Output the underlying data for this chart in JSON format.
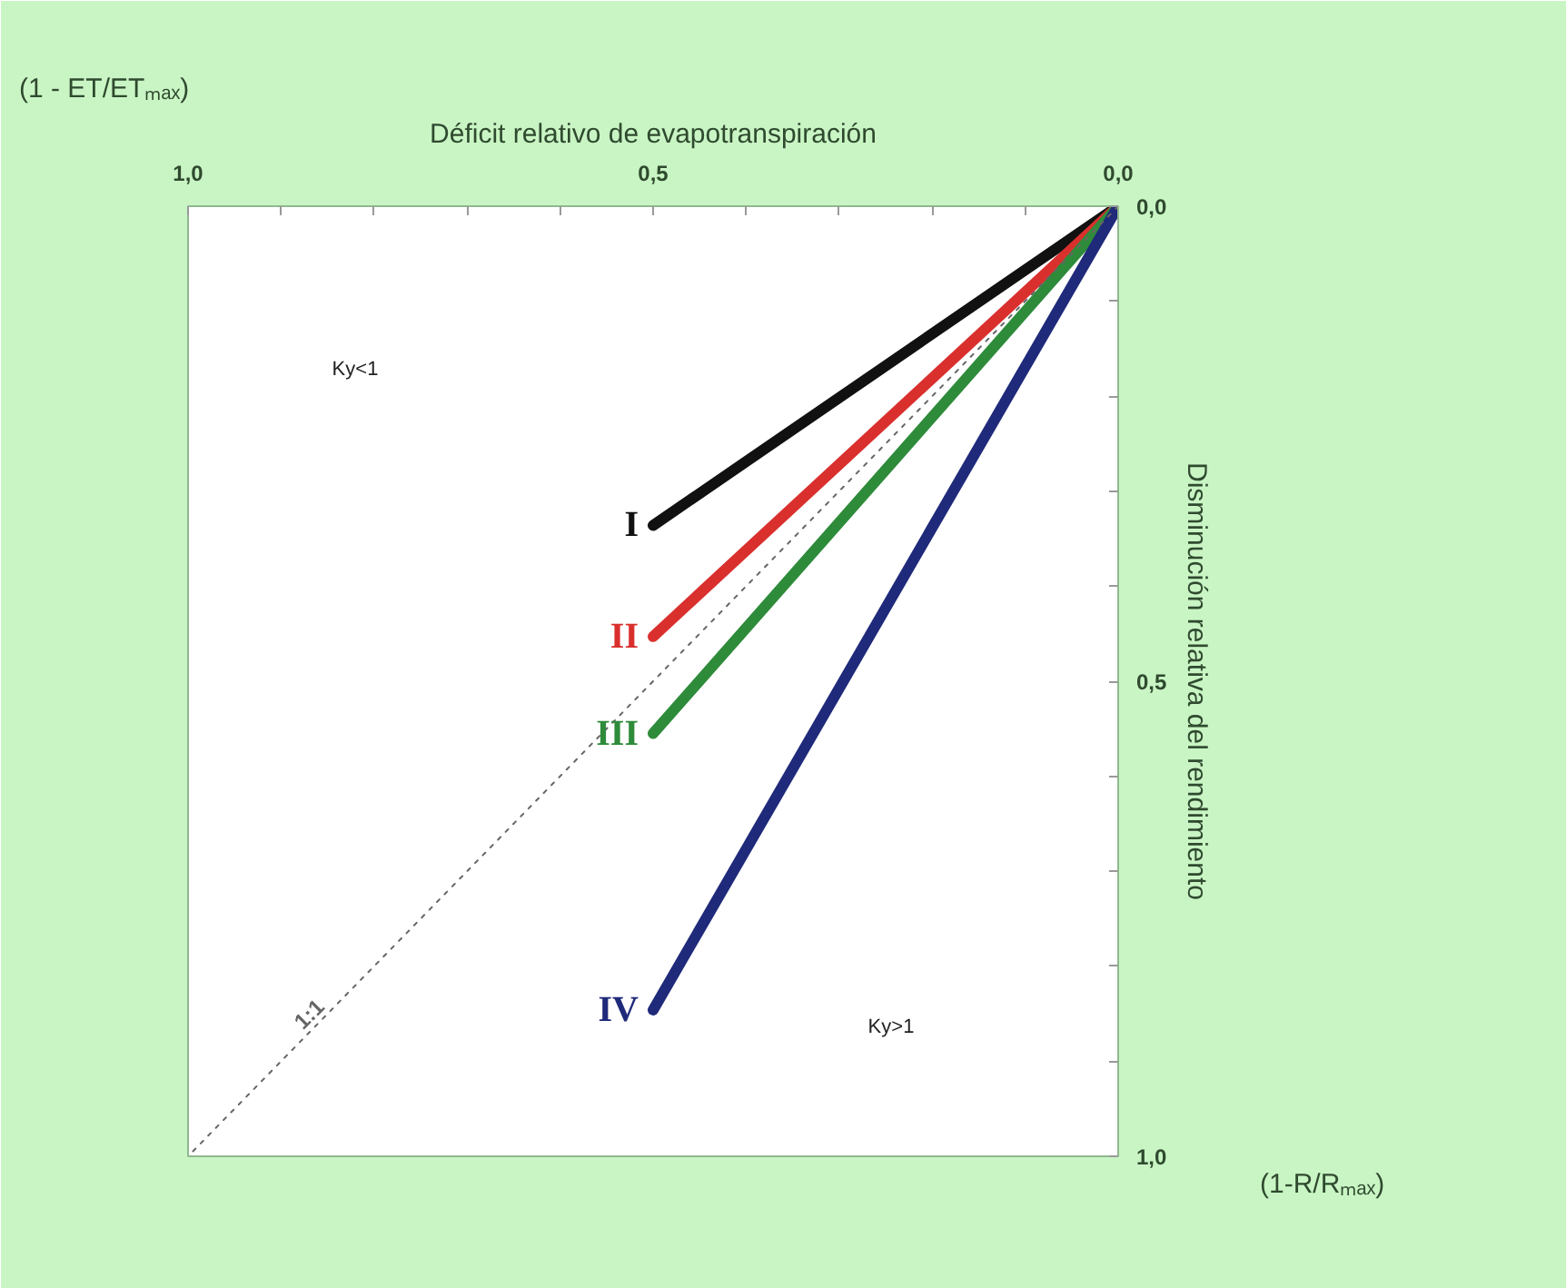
{
  "chart_data": {
    "type": "line",
    "xlabel": "Déficit relativo de evapotranspiración",
    "ylabel": "Disminución relativa del rendimiento",
    "annotations": [
      "(1 - ET/ETₘₐₓ)",
      "(1-R/Rₘₐₓ)",
      "Ky<1",
      "Ky>1"
    ],
    "xlim": [
      1,
      0
    ],
    "ylim": [
      1,
      0
    ],
    "xticks": [
      {
        "value": 1,
        "label": "1,0"
      },
      {
        "value": 0.9,
        "label": null
      },
      {
        "value": 0.8,
        "label": null
      },
      {
        "value": 0.7,
        "label": null
      },
      {
        "value": 0.6,
        "label": null
      },
      {
        "value": 0.5,
        "label": "0,5"
      },
      {
        "value": 0.4,
        "label": null
      },
      {
        "value": 0.3,
        "label": null
      },
      {
        "value": 0.2,
        "label": null
      },
      {
        "value": 0.1,
        "label": null
      },
      {
        "value": 0,
        "label": "0,0"
      }
    ],
    "yticks": [
      {
        "value": 0,
        "label": "0,0"
      },
      {
        "value": 0.1,
        "label": null
      },
      {
        "value": 0.2,
        "label": null
      },
      {
        "value": 0.3,
        "label": null
      },
      {
        "value": 0.4,
        "label": null
      },
      {
        "value": 0.5,
        "label": "0,5"
      },
      {
        "value": 0.6,
        "label": null
      },
      {
        "value": 0.7,
        "label": null
      },
      {
        "value": 0.8,
        "label": null
      },
      {
        "value": 0.9,
        "label": null
      },
      {
        "value": 1,
        "label": "1,0"
      }
    ],
    "grid": false,
    "series": [
      {
        "name": "I",
        "color": "#111111",
        "x": [
          0,
          0.5
        ],
        "values": [
          0,
          0.336
        ]
      },
      {
        "name": "II",
        "color": "#d9302e",
        "x": [
          0,
          0.5
        ],
        "values": [
          0,
          0.453
        ]
      },
      {
        "name": "III",
        "color": "#2e8b3a",
        "x": [
          0,
          0.5
        ],
        "values": [
          0,
          0.555
        ]
      },
      {
        "name": "IV",
        "color": "#1f2a7a",
        "x": [
          0,
          0.5
        ],
        "values": [
          0,
          0.846
        ]
      },
      {
        "name": "1:1",
        "color": "#666666",
        "x": [
          0,
          1
        ],
        "values": [
          0,
          1
        ],
        "line_style": "dotted"
      }
    ]
  }
}
